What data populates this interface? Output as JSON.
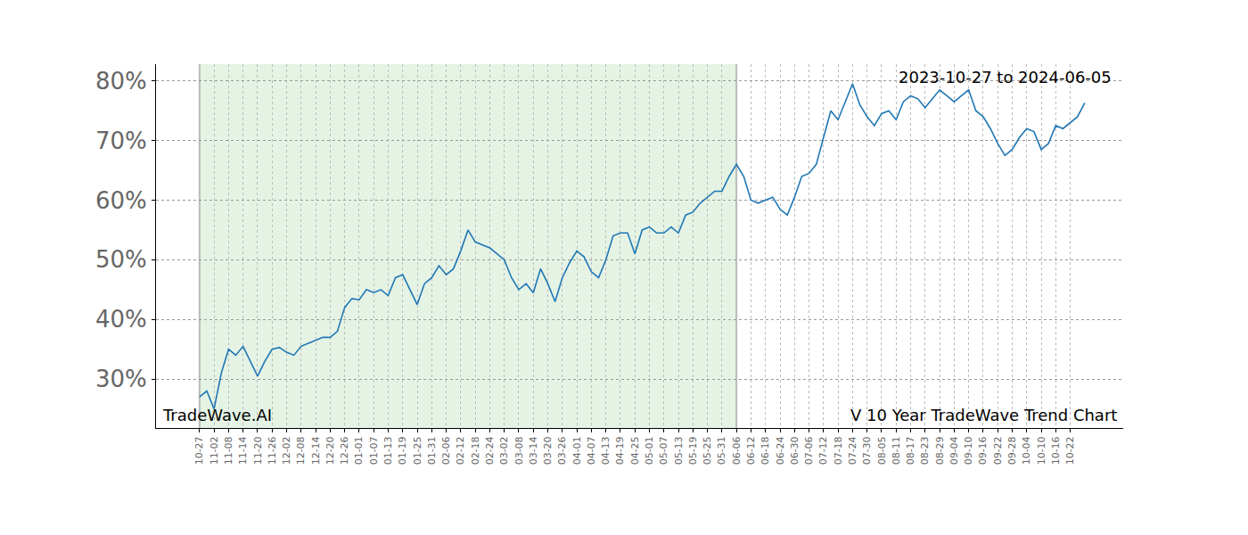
{
  "chart_data": {
    "type": "line",
    "annotations": [
      {
        "text": "2023-10-27 to 2024-06-05",
        "position": "top-right"
      },
      {
        "text": "TradeWave.AI",
        "position": "bottom-left"
      },
      {
        "text": "V 10 Year TradeWave Trend Chart",
        "position": "bottom-right"
      }
    ],
    "shaded_span": [
      "10-27",
      "06-06"
    ],
    "categories": [
      "10-27",
      null,
      "11-02",
      null,
      "11-08",
      null,
      "11-14",
      null,
      "11-20",
      null,
      "11-26",
      null,
      "12-02",
      null,
      "12-08",
      null,
      "12-14",
      null,
      "12-20",
      null,
      "12-26",
      null,
      "01-01",
      null,
      "01-07",
      null,
      "01-13",
      null,
      "01-19",
      null,
      "01-25",
      null,
      "01-31",
      null,
      "02-06",
      null,
      "02-12",
      null,
      "02-18",
      null,
      "02-24",
      null,
      "03-02",
      null,
      "03-08",
      null,
      "03-14",
      null,
      "03-20",
      null,
      "03-26",
      null,
      "04-01",
      null,
      "04-07",
      null,
      "04-13",
      null,
      "04-19",
      null,
      "04-25",
      null,
      "05-01",
      null,
      "05-07",
      null,
      "05-13",
      null,
      "05-19",
      null,
      "05-25",
      null,
      "05-31",
      null,
      "06-06",
      null,
      "06-12",
      null,
      "06-18",
      null,
      "06-24",
      null,
      "06-30",
      null,
      "07-06",
      null,
      "07-12",
      null,
      "07-18",
      null,
      "07-24",
      null,
      "07-30",
      null,
      "08-05",
      null,
      "08-11",
      null,
      "08-17",
      null,
      "08-23",
      null,
      "08-29",
      null,
      "09-04",
      null,
      "09-10",
      null,
      "09-16",
      null,
      "09-22",
      null,
      "09-28",
      null,
      "10-04",
      null,
      "10-10",
      null,
      "10-16",
      null,
      "10-22",
      null,
      null
    ],
    "series": [
      {
        "name": "V",
        "color": "#1f77b4",
        "values": [
          27,
          28,
          25,
          31,
          35,
          34,
          35.5,
          33,
          30.5,
          33,
          35,
          35.3,
          34.5,
          34,
          35.5,
          36,
          36.5,
          37,
          37,
          38,
          42,
          43.5,
          43.3,
          45,
          44.5,
          45,
          44,
          47,
          47.5,
          45,
          42.5,
          46,
          47,
          49,
          47.5,
          48.5,
          51.5,
          55,
          53,
          52.5,
          52,
          51,
          50,
          47,
          45,
          46,
          44.5,
          48.5,
          46,
          43,
          47,
          49.5,
          51.5,
          50.5,
          48,
          47,
          50,
          54,
          54.5,
          54.5,
          51,
          55,
          55.5,
          54.5,
          54.5,
          55.5,
          54.5,
          57.5,
          58,
          59.5,
          60.5,
          61.5,
          61.5,
          64,
          66,
          64,
          60,
          59.5,
          60,
          60.5,
          58.5,
          57.5,
          60.5,
          64,
          64.5,
          66,
          70.5,
          75,
          73.5,
          76.5,
          79.5,
          76,
          74,
          72.5,
          74.5,
          75,
          73.5,
          76.5,
          77.5,
          77,
          75.5,
          77,
          78.5,
          77.5,
          76.5,
          77.5,
          78.5,
          75,
          74,
          72,
          69.5,
          67.5,
          68.5,
          70.5,
          72,
          71.5,
          68.5,
          69.5,
          72.5,
          72,
          73,
          74,
          76.3
        ]
      }
    ],
    "xlim": [
      -6,
      127.3
    ],
    "ylim": [
      21.8,
      82.8
    ],
    "yticks": [
      {
        "value": 30,
        "label": "30%"
      },
      {
        "value": 40,
        "label": "40%"
      },
      {
        "value": 50,
        "label": "50%"
      },
      {
        "value": 60,
        "label": "60%"
      },
      {
        "value": 70,
        "label": "70%"
      },
      {
        "value": 80,
        "label": "80%"
      }
    ],
    "grid": true
  }
}
